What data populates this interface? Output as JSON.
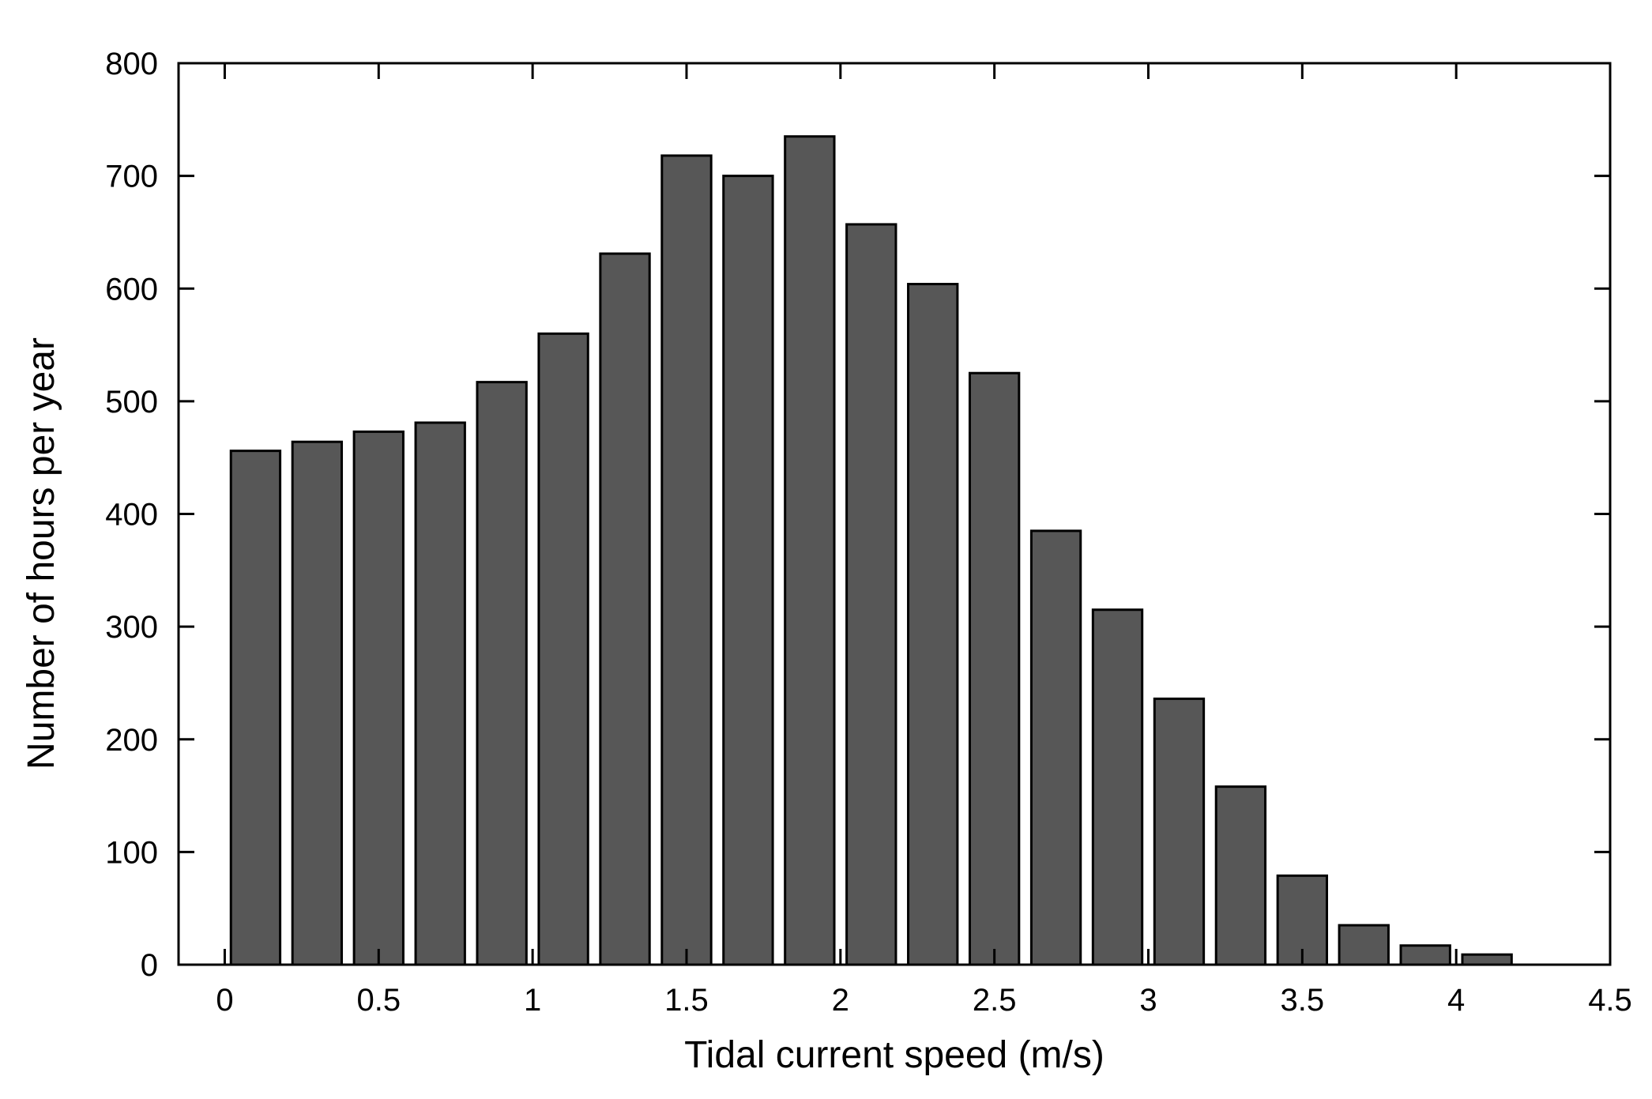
{
  "chart_data": {
    "type": "bar",
    "title": "",
    "xlabel": "Tidal current speed (m/s)",
    "ylabel": "Number of hours per year",
    "xlim": [
      -0.15,
      4.5
    ],
    "ylim": [
      0,
      800
    ],
    "xticks": [
      "0",
      "0.5",
      "1",
      "1.5",
      "2",
      "2.5",
      "3",
      "3.5",
      "4",
      "4.5"
    ],
    "xtick_values": [
      0,
      0.5,
      1,
      1.5,
      2,
      2.5,
      3,
      3.5,
      4,
      4.5
    ],
    "yticks": [
      "0",
      "100",
      "200",
      "300",
      "400",
      "500",
      "600",
      "700",
      "800"
    ],
    "ytick_values": [
      0,
      100,
      200,
      300,
      400,
      500,
      600,
      700,
      800
    ],
    "bar_width": 0.16,
    "grid": false,
    "legend": "none",
    "bar_color": "#575757",
    "bar_edge_color": "#000000",
    "bins": [
      0.1,
      0.3,
      0.5,
      0.7,
      0.9,
      1.1,
      1.3,
      1.5,
      1.7,
      1.9,
      2.1,
      2.3,
      2.5,
      2.7,
      2.9,
      3.1,
      3.3,
      3.5,
      3.7,
      3.9,
      4.1
    ],
    "values": [
      456,
      464,
      473,
      481,
      517,
      560,
      631,
      718,
      700,
      735,
      657,
      604,
      525,
      385,
      315,
      236,
      158,
      79,
      35,
      17,
      9
    ]
  }
}
